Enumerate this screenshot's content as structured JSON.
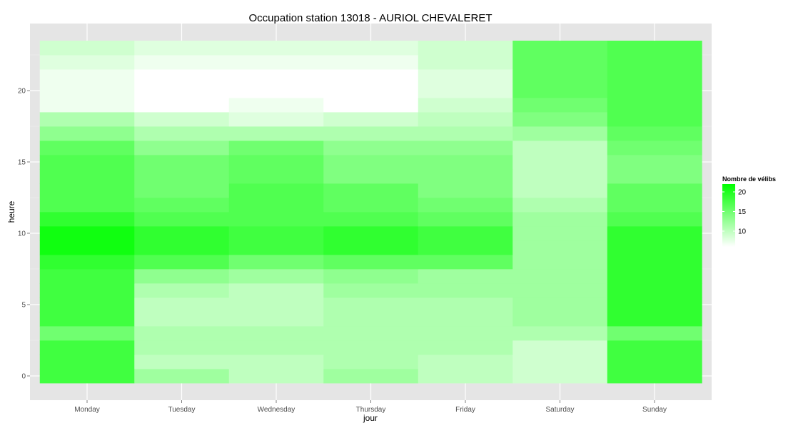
{
  "chart_data": {
    "type": "heatmap",
    "title": "Occupation station 13018 - AURIOL CHEVALERET",
    "xlabel": "jour",
    "ylabel": "heure",
    "categories": [
      "Monday",
      "Tuesday",
      "Wednesday",
      "Thursday",
      "Friday",
      "Saturday",
      "Sunday"
    ],
    "y": [
      0,
      1,
      2,
      3,
      4,
      5,
      6,
      7,
      8,
      9,
      10,
      11,
      12,
      13,
      14,
      15,
      16,
      17,
      18,
      19,
      20,
      21,
      22,
      23
    ],
    "y_ticks": [
      0,
      5,
      10,
      15,
      20
    ],
    "ylim": [
      -0.5,
      23.5
    ],
    "legend": {
      "title": "Nombre de vélibs",
      "ticks": [
        10,
        15,
        20
      ],
      "position": "right",
      "low_color": "#ffffff",
      "high_color": "#00ff00",
      "range": [
        6,
        22
      ]
    },
    "grid": true,
    "values": [
      [
        18,
        12,
        10,
        12,
        10,
        9,
        18
      ],
      [
        18,
        10,
        10,
        11,
        10,
        9,
        18
      ],
      [
        18,
        11,
        11,
        11,
        11,
        9,
        18
      ],
      [
        15,
        11,
        11,
        11,
        11,
        11,
        15
      ],
      [
        18,
        10,
        10,
        11,
        11,
        12,
        19
      ],
      [
        18,
        10,
        10,
        11,
        11,
        12,
        19
      ],
      [
        18,
        11,
        10,
        12,
        12,
        12,
        19
      ],
      [
        18,
        13,
        12,
        13,
        12,
        12,
        19
      ],
      [
        19,
        17,
        15,
        16,
        16,
        12,
        19
      ],
      [
        21,
        19,
        18,
        19,
        18,
        12,
        19
      ],
      [
        21,
        19,
        18,
        19,
        18,
        12,
        19
      ],
      [
        19,
        17,
        17,
        17,
        16,
        12,
        17
      ],
      [
        17,
        16,
        17,
        16,
        15,
        11,
        16
      ],
      [
        17,
        15,
        17,
        16,
        14,
        10,
        16
      ],
      [
        17,
        15,
        16,
        14,
        14,
        10,
        14
      ],
      [
        17,
        15,
        16,
        14,
        14,
        10,
        14
      ],
      [
        16,
        13,
        15,
        13,
        13,
        10,
        15
      ],
      [
        13,
        11,
        11,
        11,
        11,
        12,
        16
      ],
      [
        11,
        9,
        8,
        9,
        10,
        14,
        17
      ],
      [
        7,
        6,
        7,
        6,
        9,
        15,
        17
      ],
      [
        7,
        5,
        6,
        6,
        8,
        16,
        17
      ],
      [
        7,
        5,
        3,
        6,
        8,
        16,
        17
      ],
      [
        8,
        7,
        7,
        7,
        9,
        16,
        17
      ],
      [
        9,
        8,
        8,
        8,
        9,
        16,
        17
      ]
    ]
  }
}
